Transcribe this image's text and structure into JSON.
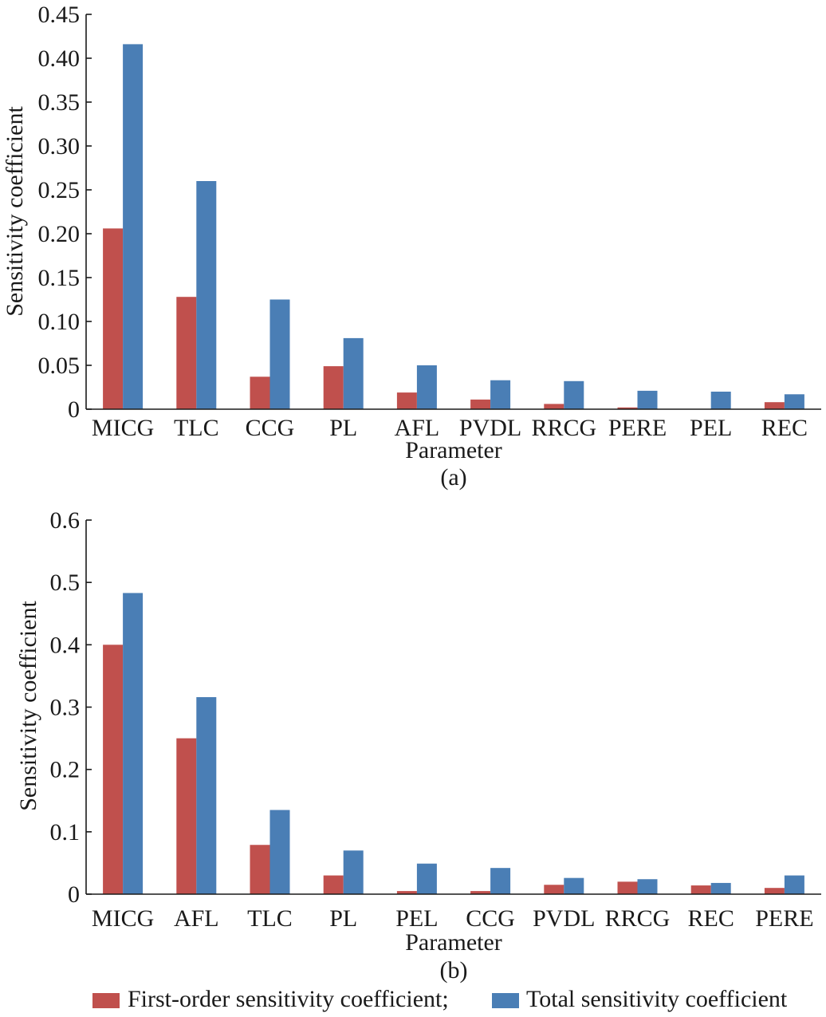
{
  "chart_data": [
    {
      "type": "bar",
      "panel_label": "(a)",
      "xlabel": "Parameter",
      "ylabel": "Sensitivity coefficient",
      "ylim": [
        0,
        0.45
      ],
      "yticks": [
        "0",
        "0.05",
        "0.10",
        "0.15",
        "0.20",
        "0.25",
        "0.30",
        "0.35",
        "0.40",
        "0.45"
      ],
      "categories": [
        "MICG",
        "TLC",
        "CCG",
        "PL",
        "AFL",
        "PVDL",
        "RRCG",
        "PERE",
        "PEL",
        "REC"
      ],
      "series": [
        {
          "name": "First-order sensitivity coefficient;",
          "color": "#c0504d",
          "values": [
            0.206,
            0.128,
            0.037,
            0.049,
            0.019,
            0.011,
            0.006,
            0.002,
            0.0,
            0.008
          ]
        },
        {
          "name": "Total sensitivity coefficient",
          "color": "#4a7eb5",
          "values": [
            0.416,
            0.26,
            0.125,
            0.081,
            0.05,
            0.033,
            0.032,
            0.021,
            0.02,
            0.017
          ]
        }
      ]
    },
    {
      "type": "bar",
      "panel_label": "(b)",
      "xlabel": "Parameter",
      "ylabel": "Sensitivity coefficient",
      "ylim": [
        0,
        0.6
      ],
      "yticks": [
        "0",
        "0.1",
        "0.2",
        "0.3",
        "0.4",
        "0.5",
        "0.6"
      ],
      "categories": [
        "MICG",
        "AFL",
        "TLC",
        "PL",
        "PEL",
        "CCG",
        "PVDL",
        "RRCG",
        "REC",
        "PERE"
      ],
      "series": [
        {
          "name": "First-order sensitivity coefficient;",
          "color": "#c0504d",
          "values": [
            0.4,
            0.25,
            0.079,
            0.03,
            0.005,
            0.005,
            0.015,
            0.02,
            0.014,
            0.01
          ]
        },
        {
          "name": "Total sensitivity coefficient",
          "color": "#4a7eb5",
          "values": [
            0.483,
            0.316,
            0.135,
            0.07,
            0.049,
            0.042,
            0.026,
            0.024,
            0.018,
            0.03
          ]
        }
      ]
    }
  ],
  "legend": [
    {
      "label": "First-order sensitivity coefficient;",
      "color": "#c0504d"
    },
    {
      "label": "Total sensitivity coefficient",
      "color": "#4a7eb5"
    }
  ]
}
